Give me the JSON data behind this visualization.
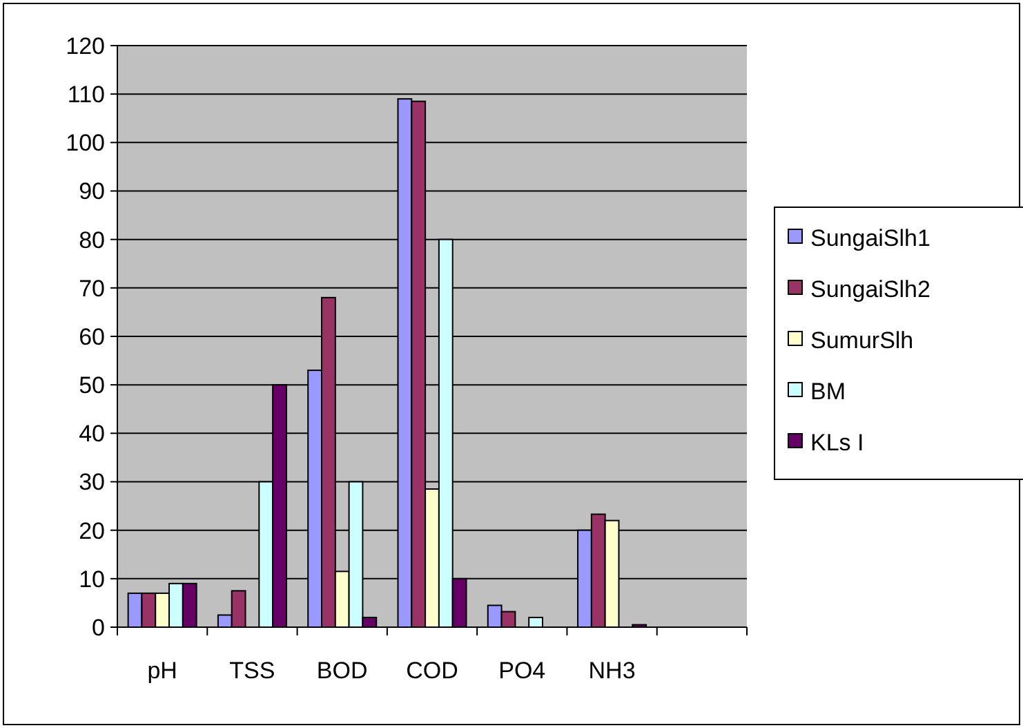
{
  "chart_data": {
    "type": "bar",
    "categories": [
      "pH",
      "TSS",
      "BOD",
      "COD",
      "PO4",
      "NH3",
      null
    ],
    "series": [
      {
        "name": "SungaiSlh1",
        "color": "#9999ff",
        "values": [
          7,
          2.5,
          53,
          109,
          4.5,
          20,
          null
        ]
      },
      {
        "name": "SungaiSlh2",
        "color": "#993366",
        "values": [
          7,
          7.5,
          68,
          108.5,
          3.2,
          23.3,
          null
        ]
      },
      {
        "name": "SumurSlh",
        "color": "#ffffcc",
        "values": [
          7,
          null,
          11.5,
          28.5,
          null,
          22,
          null
        ]
      },
      {
        "name": "BM",
        "color": "#ccffff",
        "values": [
          9,
          30,
          30,
          80,
          2,
          null,
          null
        ]
      },
      {
        "name": "KLs I",
        "color": "#660066",
        "values": [
          9,
          50,
          2,
          10,
          null,
          0.5,
          null
        ]
      }
    ],
    "ylim": [
      0,
      120
    ],
    "yticks": [
      0,
      10,
      20,
      30,
      40,
      50,
      60,
      70,
      80,
      90,
      100,
      110,
      120
    ],
    "grid": "y",
    "legend": "right"
  }
}
